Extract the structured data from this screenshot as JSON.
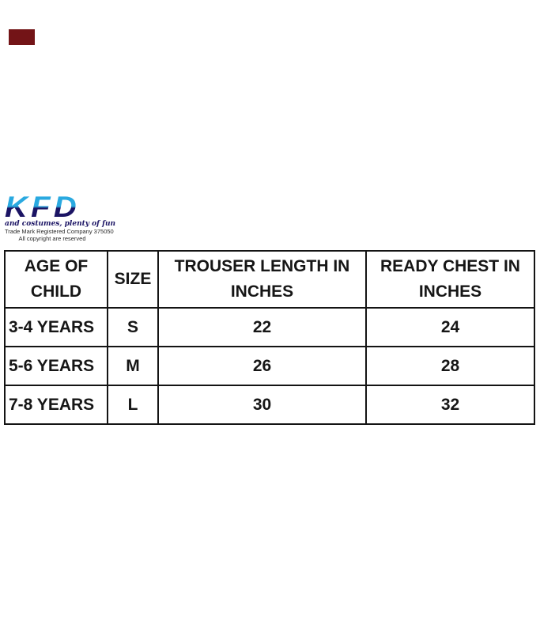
{
  "badge": {
    "color": "#731417"
  },
  "brand": {
    "logo_text": "KFD",
    "tagline": "and costumes, plenty of fun",
    "trademark_line": "Trade Mark Registered Company 375050",
    "copyright_line": "All copyright are reserved",
    "logo_blue": "#2aa9e0",
    "logo_navy": "#1b1464"
  },
  "size_chart": {
    "columns": [
      "AGE OF\nCHILD",
      "SIZE",
      "TROUSER LENGTH IN\nINCHES",
      "READY CHEST IN\nINCHES"
    ],
    "rows": [
      {
        "age": "3-4 YEARS",
        "size": "S",
        "trouser_length": "22",
        "ready_chest": "24"
      },
      {
        "age": "5-6 YEARS",
        "size": "M",
        "trouser_length": "26",
        "ready_chest": "28"
      },
      {
        "age": "7-8 YEARS",
        "size": "L",
        "trouser_length": "30",
        "ready_chest": "32"
      }
    ]
  }
}
